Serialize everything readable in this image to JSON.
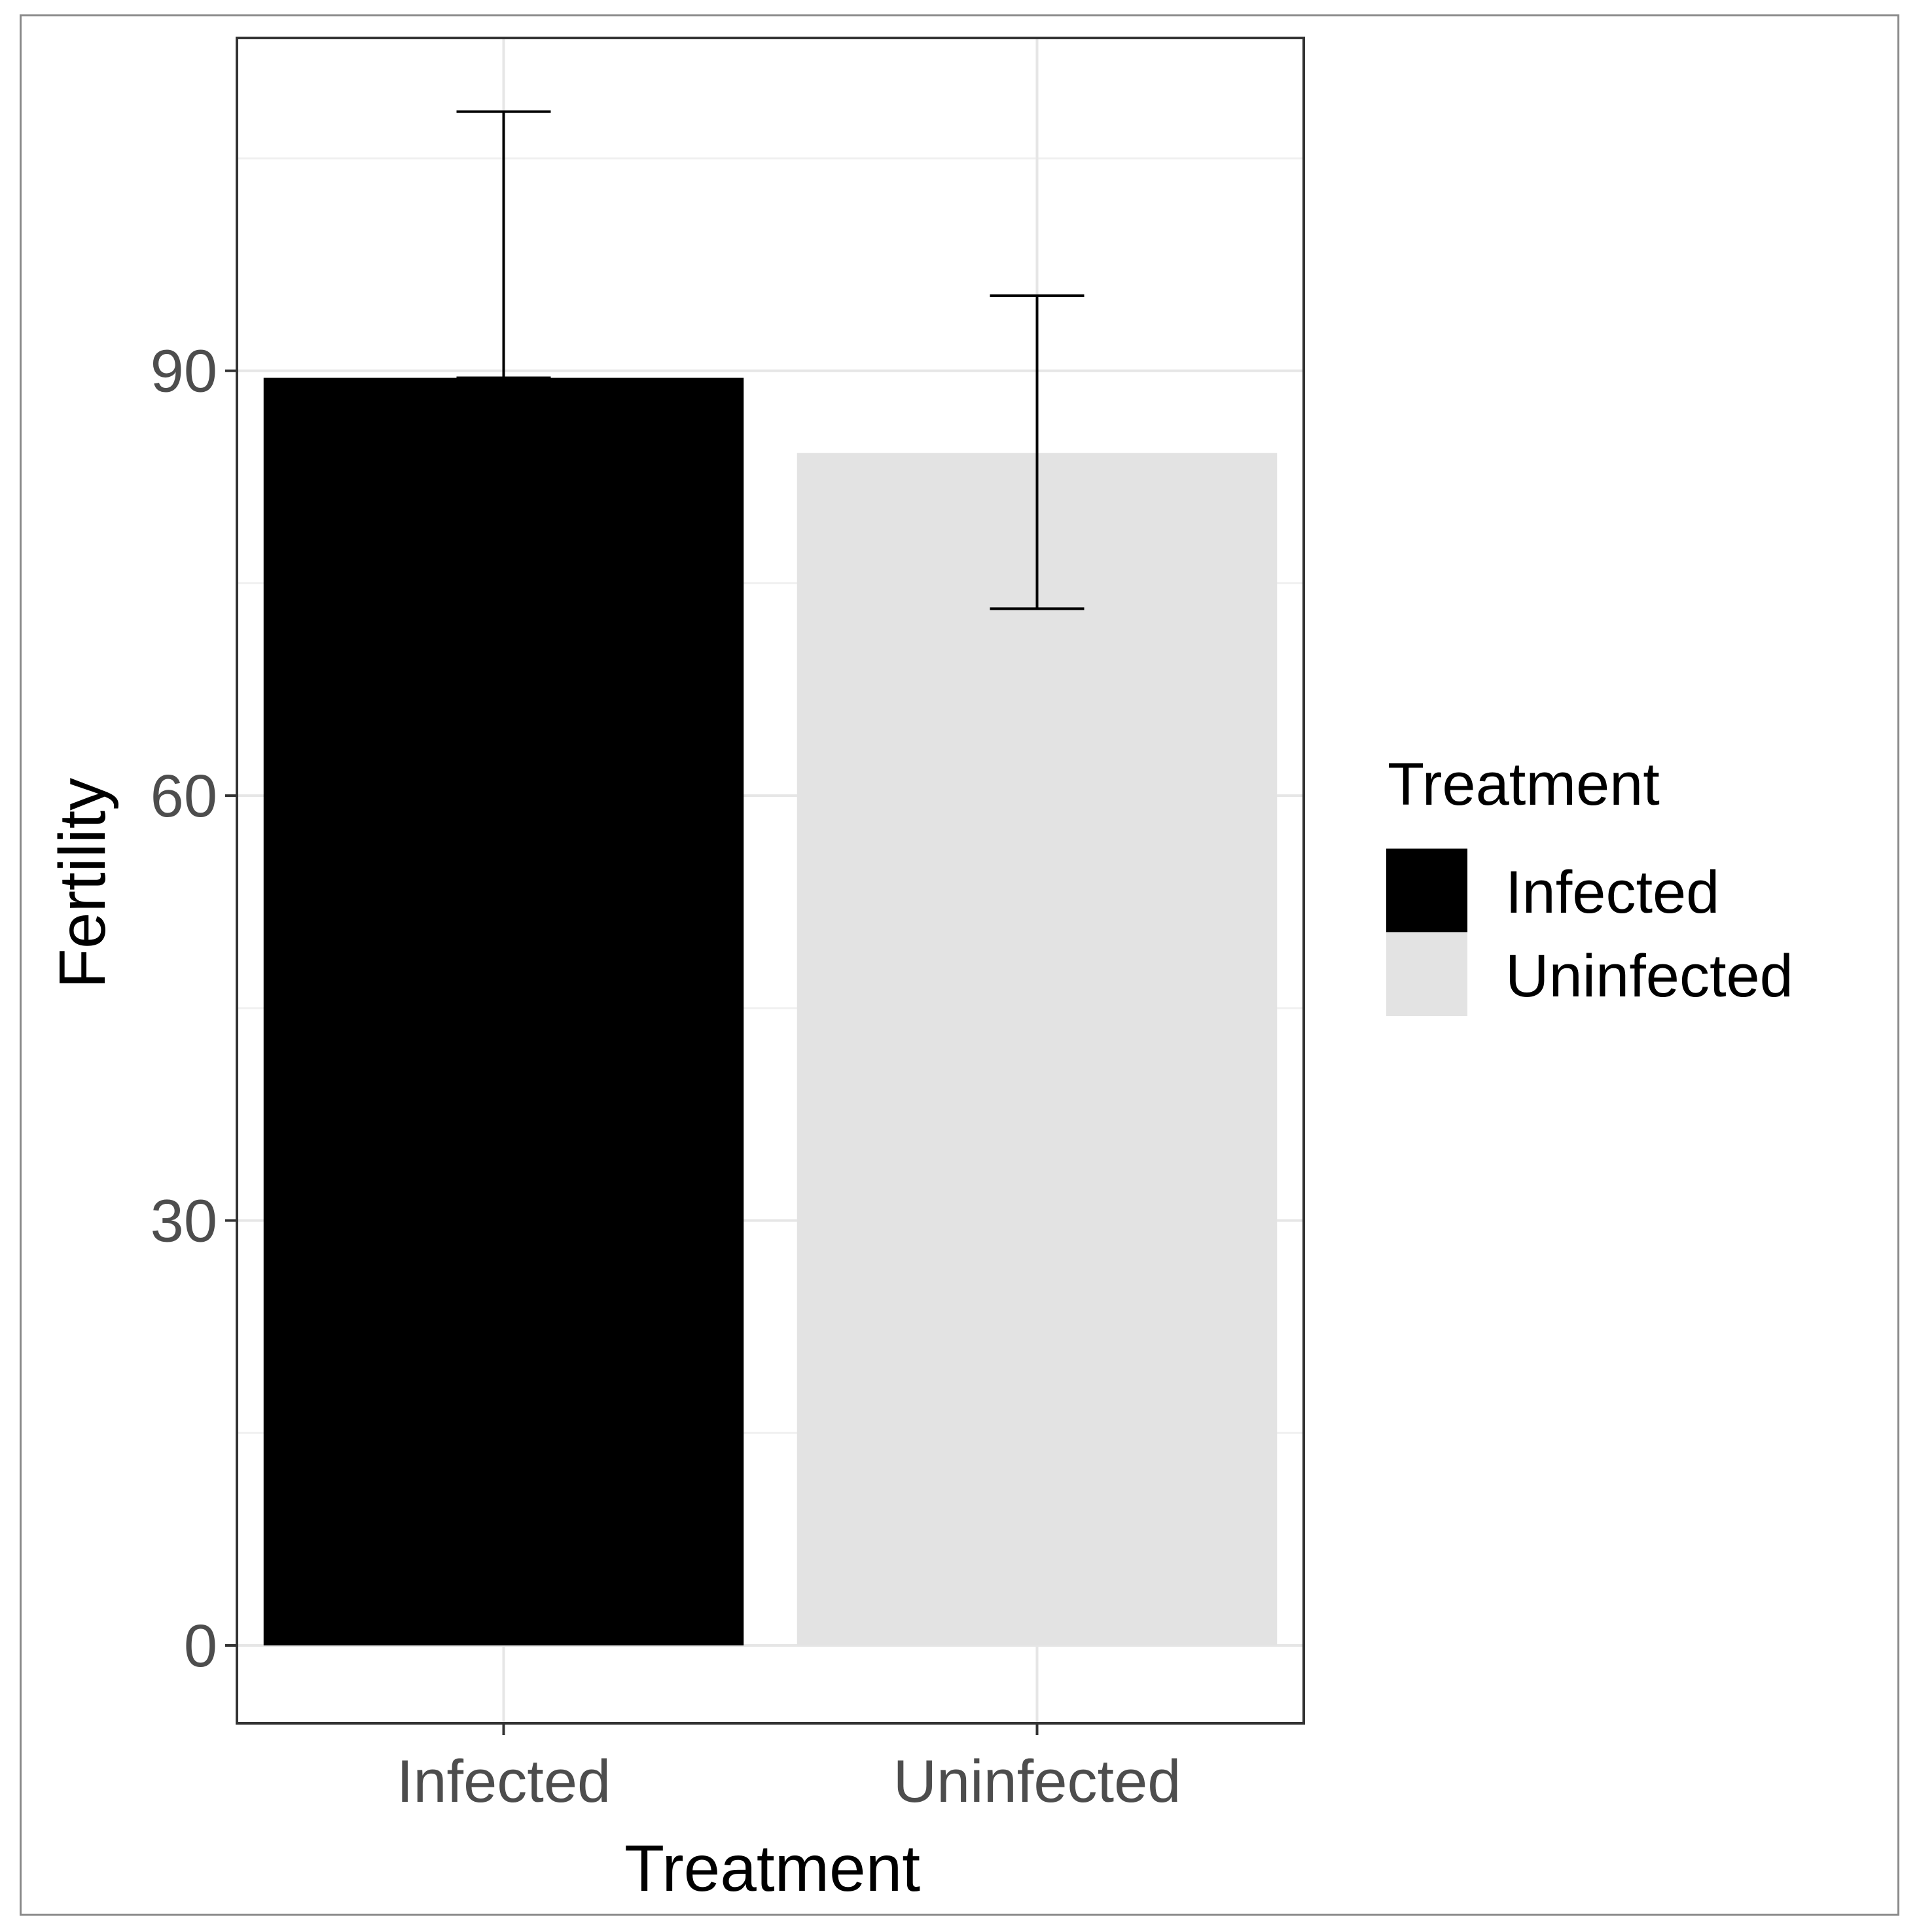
{
  "chart_data": {
    "type": "bar",
    "title": "",
    "xlabel": "Treatment",
    "ylabel": "Fertility",
    "categories": [
      "Infected",
      "Uninfected"
    ],
    "values": [
      89.5,
      84.2
    ],
    "error_bars": [
      {
        "low": 89.5,
        "high": 108.3
      },
      {
        "low": 73.2,
        "high": 95.3
      }
    ],
    "bar_colors": [
      "#000000",
      "#e3e3e3"
    ],
    "ylim": [
      -5.5,
      113.5
    ],
    "yticks": [
      0,
      30,
      60,
      90
    ],
    "ytick_labels": [
      "0",
      "30",
      "60",
      "90"
    ],
    "grid": true,
    "legend": {
      "title": "Treatment",
      "placement": "right",
      "entries": [
        {
          "label": "Infected",
          "color": "#000000"
        },
        {
          "label": "Uninfected",
          "color": "#e3e3e3"
        }
      ]
    }
  }
}
